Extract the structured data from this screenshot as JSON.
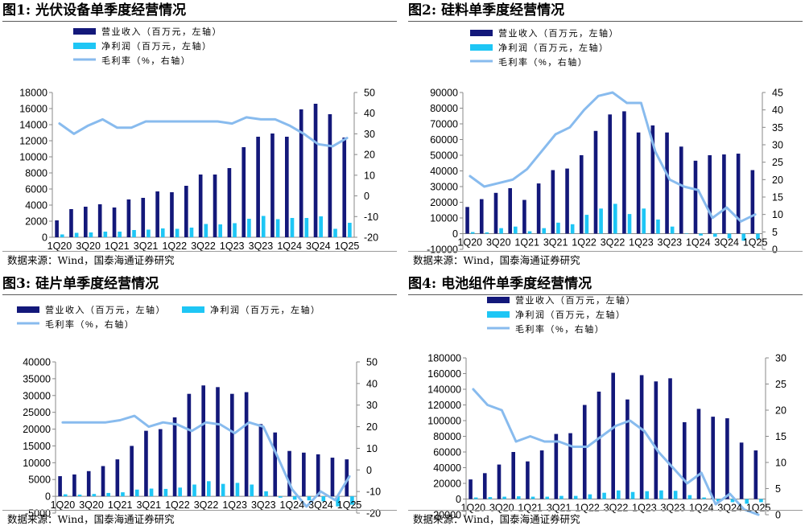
{
  "colors": {
    "revenue": "#13187a",
    "net_profit": "#1ec6f5",
    "gross_margin": "#88bbee",
    "axis": "#888888"
  },
  "legend": {
    "revenue": "营业收入（百万元，左轴）",
    "net_profit": "净利润（百万元，左轴）",
    "gross_margin": "毛利率（%，右轴）"
  },
  "source": "数据来源：Wind，国泰海通证券研究",
  "chart_data": [
    {
      "id": "fig1",
      "type": "bar+line",
      "fig_label": "图1:",
      "title": "光伏设备单季度经营情况",
      "categories": [
        "1Q20",
        "2Q20",
        "3Q20",
        "4Q20",
        "1Q21",
        "2Q21",
        "3Q21",
        "4Q21",
        "1Q22",
        "2Q22",
        "3Q22",
        "4Q22",
        "1Q23",
        "2Q23",
        "3Q23",
        "4Q23",
        "1Q24",
        "2Q24",
        "3Q24",
        "4Q24",
        "1Q25"
      ],
      "x_tick_labels": [
        "1Q20",
        "3Q20",
        "1Q21",
        "3Q21",
        "1Q22",
        "3Q22",
        "1Q23",
        "3Q23",
        "1Q24",
        "3Q24",
        "1Q25"
      ],
      "left_ylim": [
        0,
        18000
      ],
      "left_ticks": [
        0,
        2000,
        4000,
        6000,
        8000,
        10000,
        12000,
        14000,
        16000,
        18000
      ],
      "right_ylim": [
        -20,
        50
      ],
      "right_ticks": [
        -20,
        -10,
        0,
        10,
        20,
        30,
        40,
        50
      ],
      "series": [
        {
          "name": "营业收入",
          "kind": "bar",
          "values": [
            2100,
            3500,
            3800,
            4100,
            3700,
            4700,
            4900,
            5700,
            5600,
            6400,
            7800,
            7800,
            8600,
            11200,
            12500,
            12900,
            12500,
            15900,
            16600,
            15300,
            12400
          ]
        },
        {
          "name": "净利润",
          "kind": "bar",
          "values": [
            350,
            550,
            600,
            700,
            700,
            900,
            950,
            1100,
            1050,
            1200,
            1650,
            1600,
            1750,
            2300,
            2650,
            2250,
            2400,
            2400,
            2600,
            1050,
            1800
          ]
        },
        {
          "name": "毛利率",
          "kind": "line",
          "values": [
            35,
            30,
            34,
            37,
            33,
            33,
            36,
            36,
            36,
            36,
            36,
            36,
            35,
            38,
            37,
            37,
            34,
            30,
            25,
            24,
            28
          ]
        }
      ]
    },
    {
      "id": "fig2",
      "type": "bar+line",
      "fig_label": "图2:",
      "title": "硅料单季度经营情况",
      "categories": [
        "1Q20",
        "2Q20",
        "3Q20",
        "4Q20",
        "1Q21",
        "2Q21",
        "3Q21",
        "4Q21",
        "1Q22",
        "2Q22",
        "3Q22",
        "4Q22",
        "1Q23",
        "2Q23",
        "3Q23",
        "4Q23",
        "1Q24",
        "2Q24",
        "3Q24",
        "4Q24",
        "1Q25"
      ],
      "x_tick_labels": [
        "1Q20",
        "3Q20",
        "1Q21",
        "3Q21",
        "1Q22",
        "3Q22",
        "1Q23",
        "3Q23",
        "1Q24",
        "3Q24",
        "1Q25"
      ],
      "left_ylim": [
        -10000,
        90000
      ],
      "left_ticks": [
        -10000,
        0,
        10000,
        20000,
        30000,
        40000,
        50000,
        60000,
        70000,
        80000,
        90000
      ],
      "right_ylim": [
        0,
        45
      ],
      "right_ticks": [
        0,
        5,
        10,
        15,
        20,
        25,
        30,
        35,
        40,
        45
      ],
      "series": [
        {
          "name": "营业收入",
          "kind": "bar",
          "values": [
            17000,
            22000,
            26000,
            29000,
            21500,
            32000,
            40500,
            41500,
            50000,
            65500,
            76000,
            78000,
            64500,
            69000,
            64500,
            55500,
            46500,
            50000,
            50500,
            51000,
            40500
          ]
        },
        {
          "name": "净利润",
          "kind": "bar",
          "values": [
            1000,
            800,
            3500,
            4500,
            1500,
            3500,
            7000,
            6000,
            12000,
            16000,
            19000,
            12500,
            16000,
            9000,
            4500,
            300,
            -1200,
            -2000,
            -3000,
            -4500,
            -3500
          ]
        },
        {
          "name": "毛利率",
          "kind": "line",
          "values": [
            21,
            18,
            19,
            20,
            23,
            28,
            33,
            35,
            40,
            44,
            45,
            42,
            42,
            28,
            20,
            18,
            17,
            9,
            12,
            8,
            10
          ]
        }
      ]
    },
    {
      "id": "fig3",
      "type": "bar+line",
      "fig_label": "图3:",
      "title": "硅片单季度经营情况",
      "categories": [
        "1Q20",
        "2Q20",
        "3Q20",
        "4Q20",
        "1Q21",
        "2Q21",
        "3Q21",
        "4Q21",
        "1Q22",
        "2Q22",
        "3Q22",
        "4Q22",
        "1Q23",
        "2Q23",
        "3Q23",
        "4Q23",
        "1Q24",
        "2Q24",
        "3Q24",
        "4Q24",
        "1Q25"
      ],
      "x_tick_labels": [
        "1Q20",
        "3Q20",
        "1Q21",
        "3Q21",
        "1Q22",
        "3Q22",
        "1Q23",
        "3Q23",
        "1Q24",
        "3Q24",
        "1Q25"
      ],
      "left_ylim": [
        -5000,
        40000
      ],
      "left_ticks": [
        -5000,
        0,
        5000,
        10000,
        15000,
        20000,
        25000,
        30000,
        35000,
        40000
      ],
      "right_ylim": [
        -20,
        50
      ],
      "right_ticks": [
        -20,
        -10,
        0,
        10,
        20,
        30,
        40,
        50
      ],
      "series": [
        {
          "name": "营业收入",
          "kind": "bar",
          "values": [
            6000,
            6500,
            7500,
            9000,
            11000,
            15000,
            19500,
            20000,
            23500,
            30500,
            33000,
            32500,
            30500,
            31000,
            21500,
            19000,
            13500,
            13000,
            12500,
            11500,
            11000
          ]
        },
        {
          "name": "净利润",
          "kind": "bar",
          "values": [
            600,
            500,
            700,
            1000,
            1200,
            2000,
            2300,
            2200,
            2600,
            3500,
            4500,
            3700,
            4000,
            3500,
            1500,
            -400,
            -1000,
            -1200,
            -1500,
            -3000,
            -2500
          ]
        },
        {
          "name": "毛利率",
          "kind": "line",
          "values": [
            22,
            22,
            22,
            22,
            23,
            25,
            20,
            22,
            21,
            18,
            22,
            21,
            17,
            22,
            20,
            6,
            -9,
            -17,
            -10,
            -14,
            -3
          ]
        }
      ]
    },
    {
      "id": "fig4",
      "type": "bar+line",
      "fig_label": "图4:",
      "title": "电池组件单季度经营情况",
      "categories": [
        "1Q20",
        "2Q20",
        "3Q20",
        "4Q20",
        "1Q21",
        "2Q21",
        "3Q21",
        "4Q21",
        "1Q22",
        "2Q22",
        "3Q22",
        "4Q22",
        "1Q23",
        "2Q23",
        "3Q23",
        "4Q23",
        "1Q24",
        "2Q24",
        "3Q24",
        "4Q24",
        "1Q25"
      ],
      "x_tick_labels": [
        "1Q20",
        "3Q20",
        "1Q21",
        "3Q21",
        "1Q22",
        "3Q22",
        "1Q23",
        "3Q23",
        "1Q24",
        "3Q24",
        "1Q25"
      ],
      "left_ylim": [
        -20000,
        180000
      ],
      "left_ticks": [
        -20000,
        0,
        20000,
        40000,
        60000,
        80000,
        100000,
        120000,
        140000,
        160000,
        180000
      ],
      "right_ylim": [
        0,
        30
      ],
      "right_ticks": [
        0,
        5,
        10,
        15,
        20,
        25,
        30
      ],
      "series": [
        {
          "name": "营业收入",
          "kind": "bar",
          "values": [
            25000,
            33000,
            44000,
            60000,
            48000,
            62000,
            83000,
            84000,
            120000,
            137000,
            161000,
            127000,
            158000,
            150000,
            154000,
            98000,
            115000,
            105000,
            103000,
            72000,
            62000
          ]
        },
        {
          "name": "净利润",
          "kind": "bar",
          "values": [
            2000,
            2500,
            3000,
            3500,
            3000,
            3000,
            4000,
            4000,
            6000,
            8000,
            11000,
            9000,
            10000,
            11000,
            10500,
            5000,
            2000,
            -3000,
            -4000,
            -6000,
            -4000
          ]
        },
        {
          "name": "毛利率",
          "kind": "line",
          "values": [
            24,
            21,
            20,
            14,
            15,
            14,
            14,
            13,
            13,
            15,
            17,
            18,
            16,
            12,
            9,
            6,
            8,
            2,
            4,
            1,
            0
          ]
        }
      ]
    }
  ]
}
